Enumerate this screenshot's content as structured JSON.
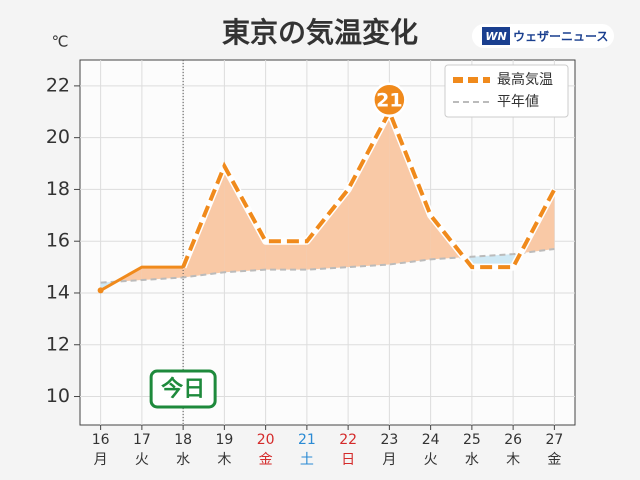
{
  "chart_data": {
    "type": "line",
    "title": "東京の気温変化",
    "unit_label": "℃",
    "brand_mark": "WN",
    "brand": "ウェザーニュース",
    "categories": [
      "16",
      "17",
      "18",
      "19",
      "20",
      "21",
      "22",
      "23",
      "24",
      "25",
      "26",
      "27"
    ],
    "weekdays": [
      "月",
      "火",
      "水",
      "木",
      "金",
      "土",
      "日",
      "月",
      "火",
      "水",
      "木",
      "金"
    ],
    "weekday_colors": [
      "#333333",
      "#333333",
      "#333333",
      "#333333",
      "#d42a2a",
      "#2a8ad4",
      "#d42a2a",
      "#333333",
      "#333333",
      "#333333",
      "#333333",
      "#333333"
    ],
    "today_label": "今日",
    "today_index": 2,
    "series": [
      {
        "name": "最高気温",
        "color": "#f08a1c",
        "values": [
          14.1,
          15,
          15,
          18.9,
          16,
          16,
          18,
          21,
          17,
          15,
          15,
          18
        ]
      },
      {
        "name": "平年値",
        "color": "#bbbbbb",
        "values": [
          14.4,
          14.5,
          14.6,
          14.8,
          14.9,
          14.9,
          15.0,
          15.1,
          15.3,
          15.4,
          15.5,
          15.7
        ]
      }
    ],
    "peak_label_index": 7,
    "fill_above": "#f9c9a6",
    "fill_below": "#cfe9f5",
    "ylim": [
      8.9,
      23
    ],
    "yticks": [
      10,
      12,
      14,
      16,
      18,
      20,
      22
    ],
    "grid": true,
    "legend": "top-right"
  }
}
